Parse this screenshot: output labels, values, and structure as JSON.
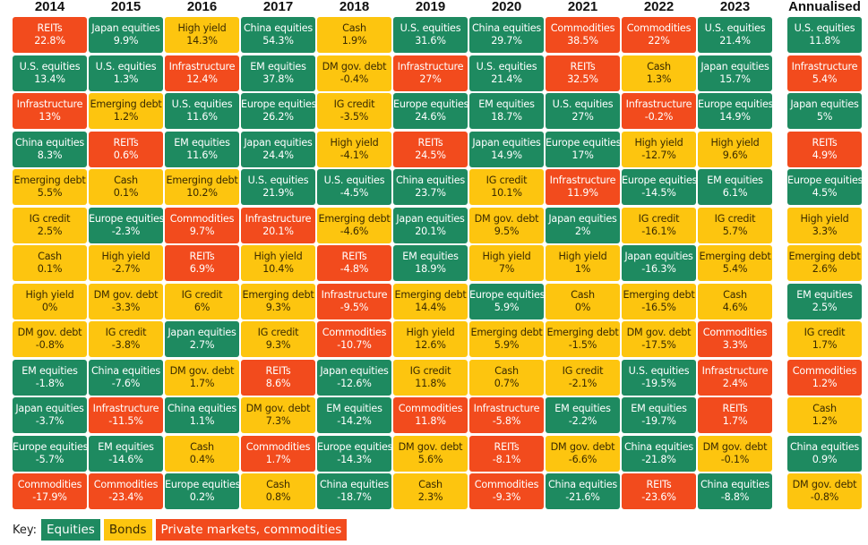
{
  "chart_data": {
    "type": "table",
    "title": "",
    "columns": [
      "2014",
      "2015",
      "2016",
      "2017",
      "2018",
      "2019",
      "2020",
      "2021",
      "2022",
      "2023",
      "Annualised"
    ],
    "category_colors": {
      "equities": "#1e8a60",
      "bonds": "#fdc50f",
      "private": "#f24b1d"
    },
    "key": {
      "label": "Key:",
      "items": [
        {
          "id": "equities",
          "label": "Equities"
        },
        {
          "id": "bonds",
          "label": "Bonds"
        },
        {
          "id": "private",
          "label": "Private markets, commodities"
        }
      ]
    },
    "data": {
      "2014": [
        [
          "REITs",
          "22.8%",
          "private"
        ],
        [
          "U.S. equities",
          "13.4%",
          "equities"
        ],
        [
          "Infrastructure",
          "13%",
          "private"
        ],
        [
          "China equities",
          "8.3%",
          "equities"
        ],
        [
          "Emerging debt",
          "5.5%",
          "bonds"
        ],
        [
          "IG credit",
          "2.5%",
          "bonds"
        ],
        [
          "Cash",
          "0.1%",
          "bonds"
        ],
        [
          "High yield",
          "0%",
          "bonds"
        ],
        [
          "DM gov. debt",
          "-0.8%",
          "bonds"
        ],
        [
          "EM equities",
          "-1.8%",
          "equities"
        ],
        [
          "Japan equities",
          "-3.7%",
          "equities"
        ],
        [
          "Europe equities",
          "-5.7%",
          "equities"
        ],
        [
          "Commodities",
          "-17.9%",
          "private"
        ]
      ],
      "2015": [
        [
          "Japan equities",
          "9.9%",
          "equities"
        ],
        [
          "U.S. equities",
          "1.3%",
          "equities"
        ],
        [
          "Emerging debt",
          "1.2%",
          "bonds"
        ],
        [
          "REITs",
          "0.6%",
          "private"
        ],
        [
          "Cash",
          "0.1%",
          "bonds"
        ],
        [
          "Europe equities",
          "-2.3%",
          "equities"
        ],
        [
          "High yield",
          "-2.7%",
          "bonds"
        ],
        [
          "DM gov. debt",
          "-3.3%",
          "bonds"
        ],
        [
          "IG credit",
          "-3.8%",
          "bonds"
        ],
        [
          "China equities",
          "-7.6%",
          "equities"
        ],
        [
          "Infrastructure",
          "-11.5%",
          "private"
        ],
        [
          "EM equities",
          "-14.6%",
          "equities"
        ],
        [
          "Commodities",
          "-23.4%",
          "private"
        ]
      ],
      "2016": [
        [
          "High yield",
          "14.3%",
          "bonds"
        ],
        [
          "Infrastructure",
          "12.4%",
          "private"
        ],
        [
          "U.S. equities",
          "11.6%",
          "equities"
        ],
        [
          "EM equities",
          "11.6%",
          "equities"
        ],
        [
          "Emerging debt",
          "10.2%",
          "bonds"
        ],
        [
          "Commodities",
          "9.7%",
          "private"
        ],
        [
          "REITs",
          "6.9%",
          "private"
        ],
        [
          "IG credit",
          "6%",
          "bonds"
        ],
        [
          "Japan equities",
          "2.7%",
          "equities"
        ],
        [
          "DM gov. debt",
          "1.7%",
          "bonds"
        ],
        [
          "China equities",
          "1.1%",
          "equities"
        ],
        [
          "Cash",
          "0.4%",
          "bonds"
        ],
        [
          "Europe equities",
          "0.2%",
          "equities"
        ]
      ],
      "2017": [
        [
          "China equities",
          "54.3%",
          "equities"
        ],
        [
          "EM equities",
          "37.8%",
          "equities"
        ],
        [
          "Europe equities",
          "26.2%",
          "equities"
        ],
        [
          "Japan equities",
          "24.4%",
          "equities"
        ],
        [
          "U.S. equities",
          "21.9%",
          "equities"
        ],
        [
          "Infrastructure",
          "20.1%",
          "private"
        ],
        [
          "High yield",
          "10.4%",
          "bonds"
        ],
        [
          "Emerging debt",
          "9.3%",
          "bonds"
        ],
        [
          "IG credit",
          "9.3%",
          "bonds"
        ],
        [
          "REITs",
          "8.6%",
          "private"
        ],
        [
          "DM gov. debt",
          "7.3%",
          "bonds"
        ],
        [
          "Commodities",
          "1.7%",
          "private"
        ],
        [
          "Cash",
          "0.8%",
          "bonds"
        ]
      ],
      "2018": [
        [
          "Cash",
          "1.9%",
          "bonds"
        ],
        [
          "DM gov. debt",
          "-0.4%",
          "bonds"
        ],
        [
          "IG credit",
          "-3.5%",
          "bonds"
        ],
        [
          "High yield",
          "-4.1%",
          "bonds"
        ],
        [
          "U.S. equities",
          "-4.5%",
          "equities"
        ],
        [
          "Emerging debt",
          "-4.6%",
          "bonds"
        ],
        [
          "REITs",
          "-4.8%",
          "private"
        ],
        [
          "Infrastructure",
          "-9.5%",
          "private"
        ],
        [
          "Commodities",
          "-10.7%",
          "private"
        ],
        [
          "Japan equities",
          "-12.6%",
          "equities"
        ],
        [
          "EM equities",
          "-14.2%",
          "equities"
        ],
        [
          "Europe equities",
          "-14.3%",
          "equities"
        ],
        [
          "China equities",
          "-18.7%",
          "equities"
        ]
      ],
      "2019": [
        [
          "U.S. equities",
          "31.6%",
          "equities"
        ],
        [
          "Infrastructure",
          "27%",
          "private"
        ],
        [
          "Europe equities",
          "24.6%",
          "equities"
        ],
        [
          "REITs",
          "24.5%",
          "private"
        ],
        [
          "China equities",
          "23.7%",
          "equities"
        ],
        [
          "Japan equities",
          "20.1%",
          "equities"
        ],
        [
          "EM equities",
          "18.9%",
          "equities"
        ],
        [
          "Emerging debt",
          "14.4%",
          "bonds"
        ],
        [
          "High yield",
          "12.6%",
          "bonds"
        ],
        [
          "IG credit",
          "11.8%",
          "bonds"
        ],
        [
          "Commodities",
          "11.8%",
          "private"
        ],
        [
          "DM gov. debt",
          "5.6%",
          "bonds"
        ],
        [
          "Cash",
          "2.3%",
          "bonds"
        ]
      ],
      "2020": [
        [
          "China equities",
          "29.7%",
          "equities"
        ],
        [
          "U.S. equities",
          "21.4%",
          "equities"
        ],
        [
          "EM equities",
          "18.7%",
          "equities"
        ],
        [
          "Japan equities",
          "14.9%",
          "equities"
        ],
        [
          "IG credit",
          "10.1%",
          "bonds"
        ],
        [
          "DM gov. debt",
          "9.5%",
          "bonds"
        ],
        [
          "High yield",
          "7%",
          "bonds"
        ],
        [
          "Europe equities",
          "5.9%",
          "equities"
        ],
        [
          "Emerging debt",
          "5.9%",
          "bonds"
        ],
        [
          "Cash",
          "0.7%",
          "bonds"
        ],
        [
          "Infrastructure",
          "-5.8%",
          "private"
        ],
        [
          "REITs",
          "-8.1%",
          "private"
        ],
        [
          "Commodities",
          "-9.3%",
          "private"
        ]
      ],
      "2021": [
        [
          "Commodities",
          "38.5%",
          "private"
        ],
        [
          "REITs",
          "32.5%",
          "private"
        ],
        [
          "U.S. equities",
          "27%",
          "equities"
        ],
        [
          "Europe equities",
          "17%",
          "equities"
        ],
        [
          "Infrastructure",
          "11.9%",
          "private"
        ],
        [
          "Japan equities",
          "2%",
          "equities"
        ],
        [
          "High yield",
          "1%",
          "bonds"
        ],
        [
          "Cash",
          "0%",
          "bonds"
        ],
        [
          "Emerging debt",
          "-1.5%",
          "bonds"
        ],
        [
          "IG credit",
          "-2.1%",
          "bonds"
        ],
        [
          "EM equities",
          "-2.2%",
          "equities"
        ],
        [
          "DM gov. debt",
          "-6.6%",
          "bonds"
        ],
        [
          "China equities",
          "-21.6%",
          "equities"
        ]
      ],
      "2022": [
        [
          "Commodities",
          "22%",
          "private"
        ],
        [
          "Cash",
          "1.3%",
          "bonds"
        ],
        [
          "Infrastructure",
          "-0.2%",
          "private"
        ],
        [
          "High yield",
          "-12.7%",
          "bonds"
        ],
        [
          "Europe equities",
          "-14.5%",
          "equities"
        ],
        [
          "IG credit",
          "-16.1%",
          "bonds"
        ],
        [
          "Japan equities",
          "-16.3%",
          "equities"
        ],
        [
          "Emerging debt",
          "-16.5%",
          "bonds"
        ],
        [
          "DM gov. debt",
          "-17.5%",
          "bonds"
        ],
        [
          "U.S. equities",
          "-19.5%",
          "equities"
        ],
        [
          "EM equities",
          "-19.7%",
          "equities"
        ],
        [
          "China equities",
          "-21.8%",
          "equities"
        ],
        [
          "REITs",
          "-23.6%",
          "private"
        ]
      ],
      "2023": [
        [
          "U.S. equities",
          "21.4%",
          "equities"
        ],
        [
          "Japan equities",
          "15.7%",
          "equities"
        ],
        [
          "Europe equities",
          "14.9%",
          "equities"
        ],
        [
          "High yield",
          "9.6%",
          "bonds"
        ],
        [
          "EM equities",
          "6.1%",
          "equities"
        ],
        [
          "IG credit",
          "5.7%",
          "bonds"
        ],
        [
          "Emerging debt",
          "5.4%",
          "bonds"
        ],
        [
          "Cash",
          "4.6%",
          "bonds"
        ],
        [
          "Commodities",
          "3.3%",
          "private"
        ],
        [
          "Infrastructure",
          "2.4%",
          "private"
        ],
        [
          "REITs",
          "1.7%",
          "private"
        ],
        [
          "DM gov. debt",
          "-0.1%",
          "bonds"
        ],
        [
          "China equities",
          "-8.8%",
          "equities"
        ]
      ],
      "Annualised": [
        [
          "U.S. equities",
          "11.8%",
          "equities"
        ],
        [
          "Infrastructure",
          "5.4%",
          "private"
        ],
        [
          "Japan equities",
          "5%",
          "equities"
        ],
        [
          "REITs",
          "4.9%",
          "private"
        ],
        [
          "Europe equities",
          "4.5%",
          "equities"
        ],
        [
          "High yield",
          "3.3%",
          "bonds"
        ],
        [
          "Emerging debt",
          "2.6%",
          "bonds"
        ],
        [
          "EM equities",
          "2.5%",
          "equities"
        ],
        [
          "IG credit",
          "1.7%",
          "bonds"
        ],
        [
          "Commodities",
          "1.2%",
          "private"
        ],
        [
          "Cash",
          "1.2%",
          "bonds"
        ],
        [
          "China equities",
          "0.9%",
          "equities"
        ],
        [
          "DM gov. debt",
          "-0.8%",
          "bonds"
        ]
      ]
    }
  }
}
